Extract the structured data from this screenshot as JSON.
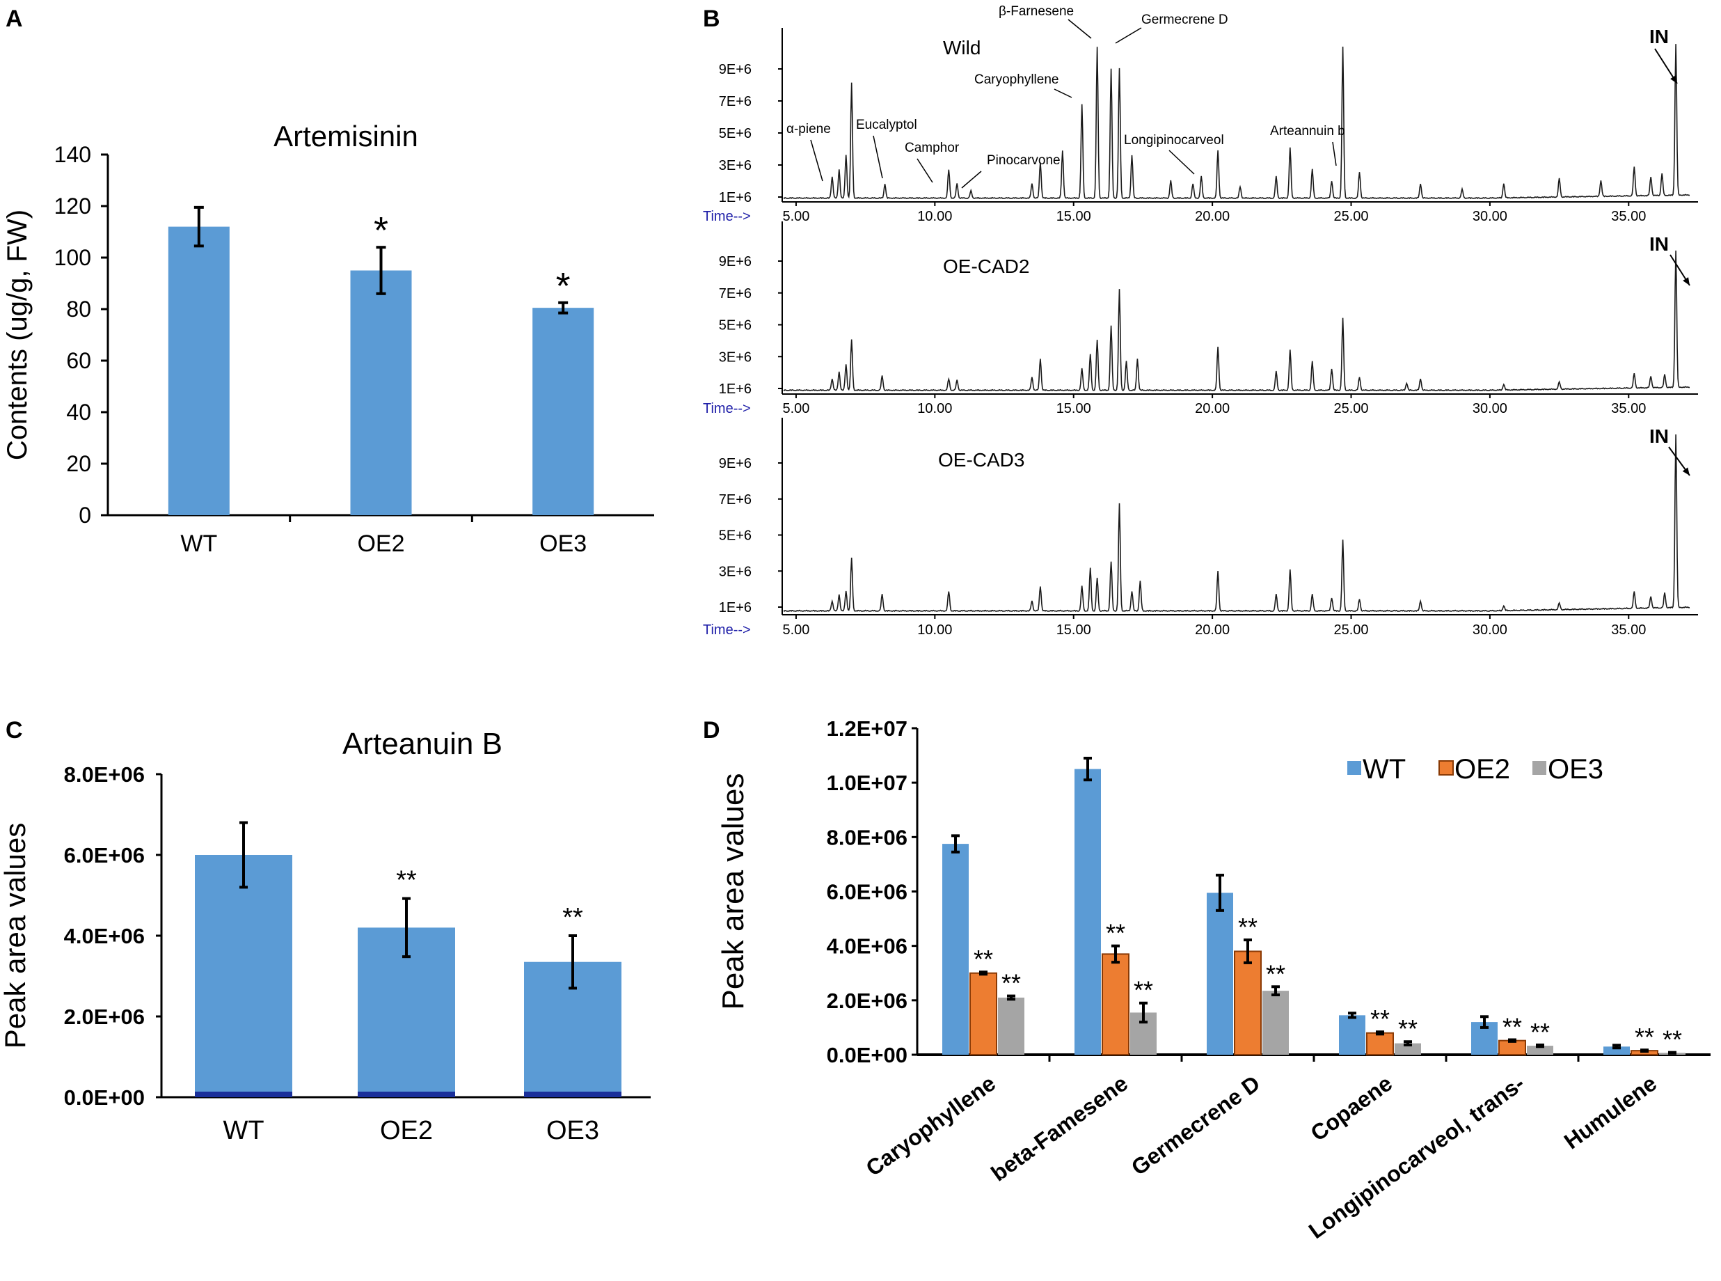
{
  "colors": {
    "bar_blue": "#5b9bd5",
    "bar_orange": "#ed7d31",
    "bar_gray": "#a5a5a5",
    "axis": "#000000",
    "time_label": "#1f1fa8",
    "chrom_line": "#1a1a1a"
  },
  "chart_data": [
    {
      "panel": "A",
      "type": "bar",
      "title": "Artemisinin",
      "ylabel": "Contents (ug/g, FW)",
      "xlabel": "",
      "categories": [
        "WT",
        "OE2",
        "OE3"
      ],
      "values": [
        112,
        95,
        80.5
      ],
      "errors": [
        7.5,
        9,
        2
      ],
      "significance": [
        "",
        "*",
        "*"
      ],
      "ylim": [
        0,
        140
      ],
      "yticks": [
        0,
        20,
        40,
        60,
        80,
        100,
        120,
        140
      ],
      "ytick_labels": [
        "0",
        "20",
        "40",
        "60",
        "80",
        "100",
        "120",
        "140"
      ],
      "grid": false
    },
    {
      "panel": "B",
      "type": "line",
      "title": "",
      "xlabel": "Time-->",
      "x_range": [
        4.5,
        37.5
      ],
      "xticks": [
        5,
        10,
        15,
        20,
        25,
        30,
        35
      ],
      "xtick_labels": [
        "5.00",
        "10.00",
        "15.00",
        "20.00",
        "25.00",
        "30.00",
        "35.00"
      ],
      "ytick_labels": [
        "1E+6",
        "3E+6",
        "5E+6",
        "7E+6",
        "9E+6"
      ],
      "internal_standard_label": "IN",
      "compound_labels": [
        {
          "name": "α-piene",
          "rt": 6.3
        },
        {
          "name": "Eucalyptol",
          "rt": 8.3
        },
        {
          "name": "Camphor",
          "rt": 10.5
        },
        {
          "name": "Pinocarvone",
          "rt": 11.0
        },
        {
          "name": "Caryophyllene",
          "rt": 15.5
        },
        {
          "name": "β-Farnesene",
          "rt": 15.85
        },
        {
          "name": "Germecrene D",
          "rt": 16.5
        },
        {
          "name": "Longipinocarveol",
          "rt": 19.3
        },
        {
          "name": "Arteannuin b",
          "rt": 24.3
        }
      ],
      "series": [
        {
          "name": "Wild",
          "peaks": [
            [
              6.3,
              1.5
            ],
            [
              6.55,
              2.0
            ],
            [
              6.8,
              3.0
            ],
            [
              7.0,
              8.0
            ],
            [
              8.2,
              1.0
            ],
            [
              10.5,
              2.0
            ],
            [
              10.8,
              1.0
            ],
            [
              11.3,
              0.5
            ],
            [
              13.5,
              1.0
            ],
            [
              13.8,
              2.5
            ],
            [
              14.6,
              3.3
            ],
            [
              15.3,
              6.5
            ],
            [
              15.85,
              10.5
            ],
            [
              16.35,
              9.0
            ],
            [
              16.65,
              9.0
            ],
            [
              17.1,
              3.0
            ],
            [
              18.5,
              1.2
            ],
            [
              19.3,
              1.0
            ],
            [
              19.6,
              1.5
            ],
            [
              20.2,
              3.3
            ],
            [
              21.0,
              0.8
            ],
            [
              22.3,
              1.5
            ],
            [
              22.8,
              3.5
            ],
            [
              23.6,
              2.0
            ],
            [
              24.3,
              1.2
            ],
            [
              24.7,
              10.5
            ],
            [
              25.3,
              1.8
            ],
            [
              27.5,
              1.0
            ],
            [
              29.0,
              0.6
            ],
            [
              30.5,
              1.0
            ],
            [
              32.5,
              1.3
            ],
            [
              34.0,
              1.1
            ],
            [
              35.2,
              2.0
            ],
            [
              35.8,
              1.3
            ],
            [
              36.2,
              1.5
            ],
            [
              36.7,
              10.5
            ]
          ]
        },
        {
          "name": "OE-CAD2",
          "peaks": [
            [
              6.3,
              0.8
            ],
            [
              6.55,
              1.3
            ],
            [
              6.8,
              1.8
            ],
            [
              7.0,
              3.5
            ],
            [
              8.1,
              1.0
            ],
            [
              10.5,
              0.8
            ],
            [
              10.8,
              0.7
            ],
            [
              13.5,
              0.9
            ],
            [
              13.8,
              2.2
            ],
            [
              15.3,
              1.5
            ],
            [
              15.6,
              2.5
            ],
            [
              15.85,
              3.5
            ],
            [
              16.35,
              4.5
            ],
            [
              16.65,
              7.0
            ],
            [
              16.9,
              2.0
            ],
            [
              17.3,
              2.2
            ],
            [
              20.2,
              3.0
            ],
            [
              22.3,
              1.3
            ],
            [
              22.8,
              2.8
            ],
            [
              23.6,
              2.0
            ],
            [
              24.3,
              1.5
            ],
            [
              24.7,
              5.0
            ],
            [
              25.3,
              0.9
            ],
            [
              27.0,
              0.5
            ],
            [
              27.5,
              0.8
            ],
            [
              30.5,
              0.4
            ],
            [
              32.5,
              0.5
            ],
            [
              35.2,
              1.0
            ],
            [
              35.8,
              0.8
            ],
            [
              36.3,
              0.9
            ],
            [
              36.7,
              9.5
            ]
          ]
        },
        {
          "name": "OE-CAD3",
          "peaks": [
            [
              6.3,
              0.6
            ],
            [
              6.55,
              1.0
            ],
            [
              6.8,
              1.2
            ],
            [
              7.0,
              3.2
            ],
            [
              8.1,
              1.0
            ],
            [
              10.5,
              1.2
            ],
            [
              13.5,
              0.6
            ],
            [
              13.8,
              1.5
            ],
            [
              15.3,
              1.5
            ],
            [
              15.6,
              2.6
            ],
            [
              15.85,
              2.0
            ],
            [
              16.35,
              3.0
            ],
            [
              16.65,
              6.5
            ],
            [
              17.1,
              1.2
            ],
            [
              17.4,
              1.8
            ],
            [
              20.2,
              2.4
            ],
            [
              22.3,
              1.0
            ],
            [
              22.8,
              2.5
            ],
            [
              23.6,
              1.0
            ],
            [
              24.3,
              0.8
            ],
            [
              24.7,
              4.3
            ],
            [
              25.3,
              0.7
            ],
            [
              27.5,
              0.6
            ],
            [
              30.5,
              0.3
            ],
            [
              32.5,
              0.4
            ],
            [
              35.2,
              1.0
            ],
            [
              35.8,
              0.7
            ],
            [
              36.3,
              0.9
            ],
            [
              36.7,
              10.5
            ]
          ]
        }
      ]
    },
    {
      "panel": "C",
      "type": "bar",
      "title": "Arteanuin B",
      "ylabel": "Peak area values",
      "xlabel": "",
      "categories": [
        "WT",
        "OE2",
        "OE3"
      ],
      "values": [
        6000000,
        4200000,
        3350000
      ],
      "errors": [
        800000,
        720000,
        650000
      ],
      "significance": [
        "",
        "**",
        "**"
      ],
      "ylim": [
        0,
        8000000
      ],
      "yticks": [
        0,
        2000000,
        4000000,
        6000000,
        8000000
      ],
      "ytick_labels": [
        "0.0E+00",
        "2.0E+06",
        "4.0E+06",
        "6.0E+06",
        "8.0E+06"
      ],
      "grid": false
    },
    {
      "panel": "D",
      "type": "bar",
      "title": "",
      "ylabel": "Peak area values",
      "xlabel": "",
      "categories": [
        "Caryophyllene",
        "beta-Famesene",
        "Germecrene D",
        "Copaene",
        "Longipinocarveol, trans-",
        "Humulene"
      ],
      "series": [
        {
          "name": "WT",
          "values": [
            7750000,
            10500000,
            5950000,
            1450000,
            1200000,
            300000
          ],
          "errors": [
            300000,
            400000,
            650000,
            80000,
            200000,
            50000
          ],
          "significance": [
            "",
            "",
            "",
            "",
            "",
            ""
          ]
        },
        {
          "name": "OE2",
          "values": [
            3000000,
            3700000,
            3800000,
            800000,
            520000,
            150000
          ],
          "errors": [
            40000,
            300000,
            420000,
            40000,
            30000,
            25000
          ],
          "significance": [
            "**",
            "**",
            "**",
            "**",
            "**",
            "**"
          ]
        },
        {
          "name": "OE3",
          "values": [
            2100000,
            1550000,
            2350000,
            420000,
            330000,
            70000
          ],
          "errors": [
            60000,
            350000,
            150000,
            60000,
            30000,
            15000
          ],
          "significance": [
            "**",
            "**",
            "**",
            "**",
            "**",
            "**"
          ]
        }
      ],
      "ylim": [
        0,
        12000000
      ],
      "yticks": [
        0,
        2000000,
        4000000,
        6000000,
        8000000,
        10000000,
        12000000
      ],
      "ytick_labels": [
        "0.0E+00",
        "2.0E+06",
        "4.0E+06",
        "6.0E+06",
        "8.0E+06",
        "1.0E+07",
        "1.2E+07"
      ],
      "legend_position": "top-right",
      "grid": false
    }
  ]
}
